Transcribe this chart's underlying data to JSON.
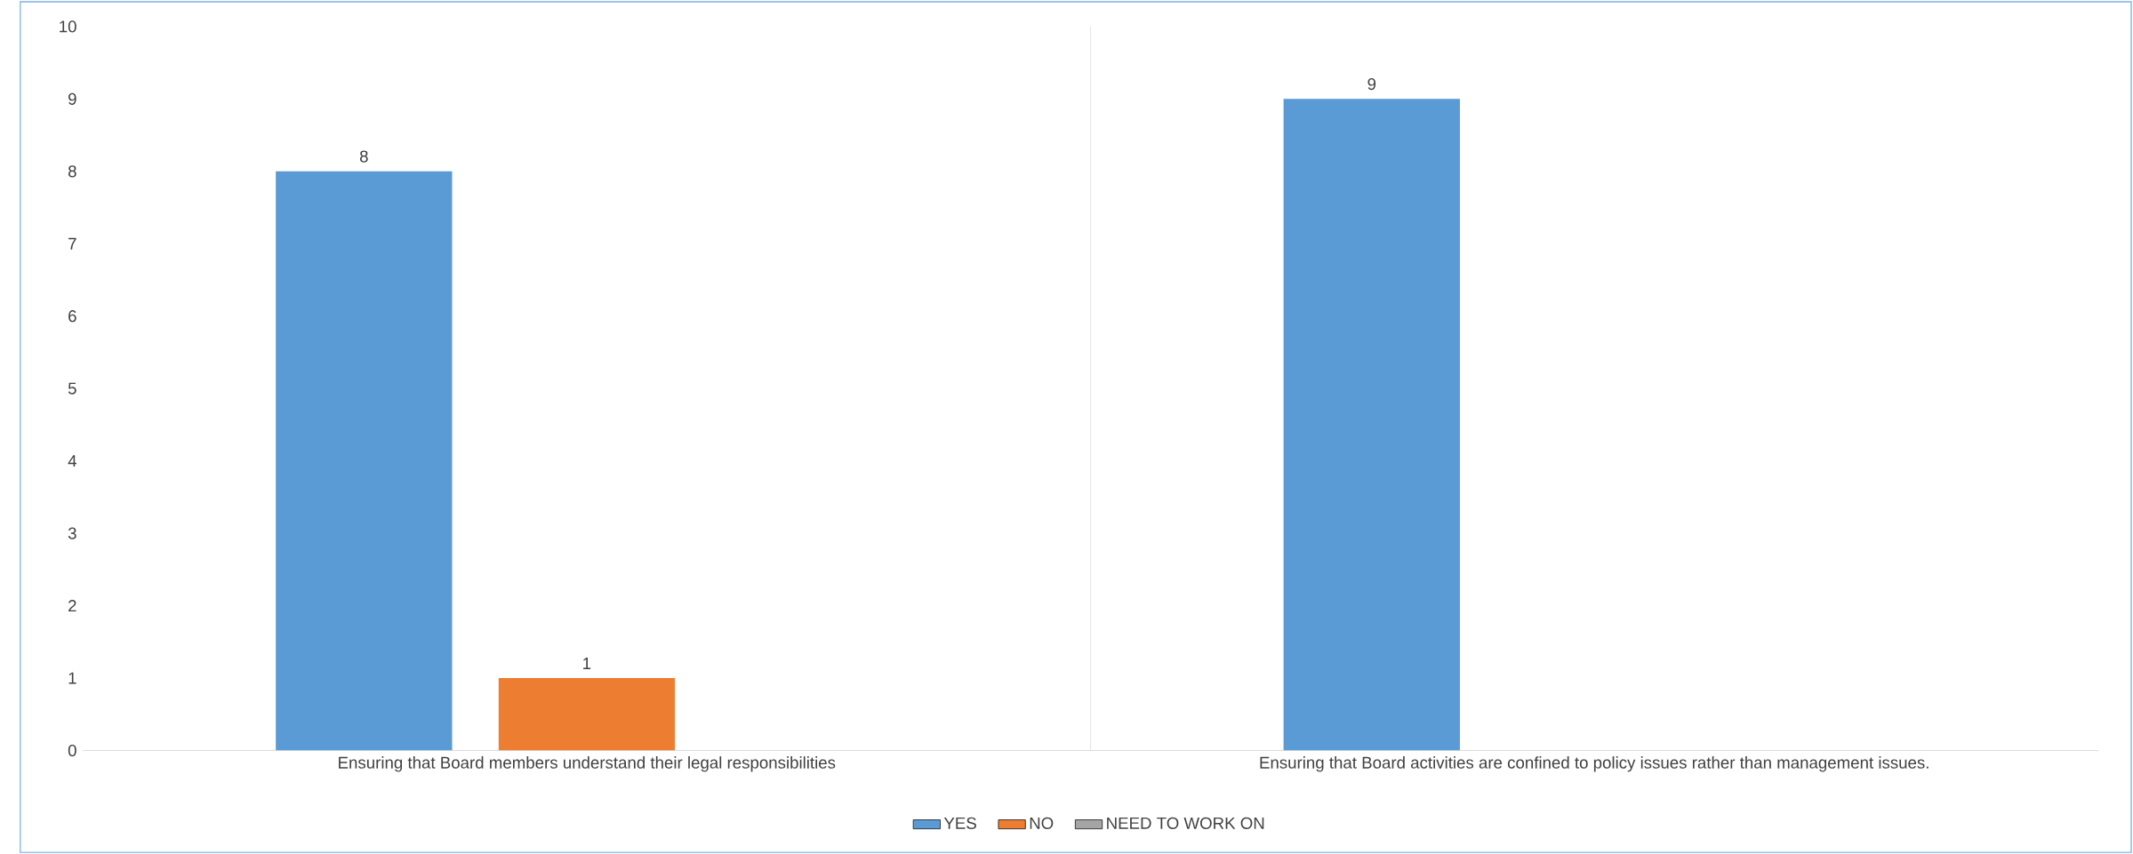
{
  "chart_data": {
    "type": "bar",
    "categories": [
      "Ensuring that Board members understand their legal responsibilities",
      "Ensuring that Board activities are confined to policy issues rather than management issues."
    ],
    "series": [
      {
        "name": "YES",
        "color": "#5b9bd5",
        "values": [
          8,
          9
        ]
      },
      {
        "name": "NO",
        "color": "#ed7d31",
        "values": [
          1,
          null
        ]
      },
      {
        "name": "NEED TO WORK ON",
        "color": "#a5a5a5",
        "values": [
          null,
          null
        ]
      }
    ],
    "ylim": [
      0,
      10
    ],
    "yticks": [
      0,
      1,
      2,
      3,
      4,
      5,
      6,
      7,
      8,
      9,
      10
    ],
    "data_labels": true,
    "legend": "bottom"
  }
}
